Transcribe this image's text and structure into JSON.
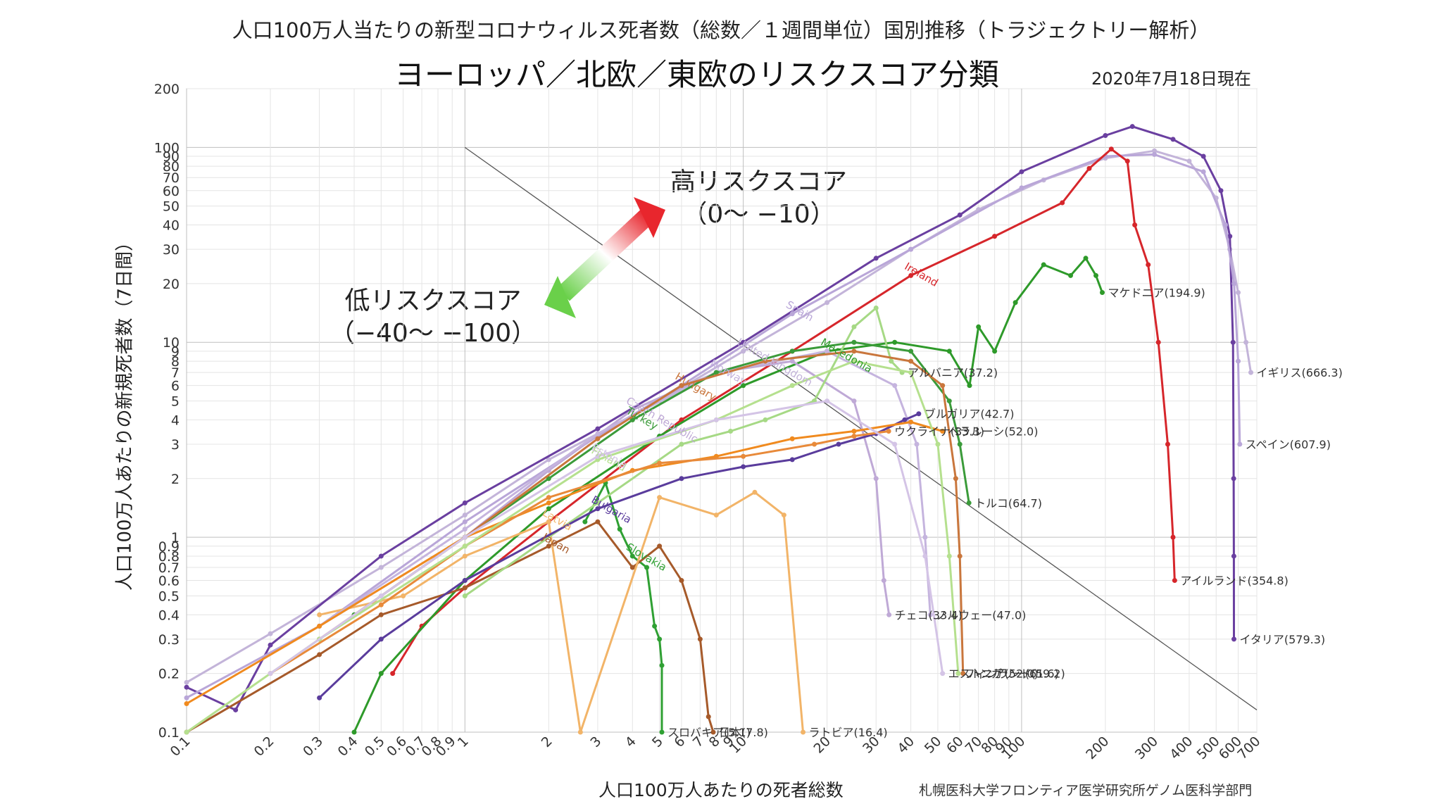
{
  "header": {
    "title": "人口100万人当たりの新型コロナウィルス死者数（総数／１週間単位）国別推移（トラジェクトリー解析）",
    "subtitle": "ヨーロッパ／北欧／東欧のリスクスコア分類",
    "date": "2020年7月18日現在"
  },
  "footer": {
    "credit": "札幌医科大学フロンティア医学研究所ゲノム医科学部門"
  },
  "zones": {
    "high": {
      "line1": "高リスクスコア",
      "line2": "（0〜 −10）",
      "color": "#e8262d"
    },
    "low": {
      "line1": "低リスクスコア",
      "line2": "（−40〜 −100）",
      "color": "#6ad04a"
    }
  },
  "chart_data": {
    "type": "line",
    "x_scale": "log",
    "y_scale": "log",
    "xlabel": "人口100万人あたりの死者総数",
    "ylabel": "人口100万人あたりの新規死者数（7日間）",
    "xlim": [
      0.1,
      700
    ],
    "ylim": [
      0.1,
      200
    ],
    "x_ticks": [
      "0.1",
      "0.2",
      "0.3",
      "0.4",
      "0.5",
      "0.6",
      "0.7",
      "0.8",
      "0.9",
      "1",
      "2",
      "3",
      "4",
      "5",
      "6",
      "7",
      "8",
      "9",
      "10",
      "20",
      "30",
      "40",
      "50",
      "60",
      "70",
      "80",
      "90",
      "100",
      "200",
      "300",
      "400",
      "500",
      "600",
      "700"
    ],
    "y_ticks": [
      "0.1",
      "0.2",
      "0.3",
      "0.4",
      "0.5",
      "0.6",
      "0.7",
      "0.8",
      "0.9",
      "1",
      "2",
      "3",
      "4",
      "5",
      "6",
      "7",
      "8",
      "9",
      "10",
      "20",
      "30",
      "40",
      "50",
      "60",
      "70",
      "80",
      "90",
      "100",
      "200"
    ],
    "grid": true,
    "reference_line": [
      [
        1,
        100
      ],
      [
        700,
        0.13
      ]
    ],
    "series": [
      {
        "key": "uk",
        "color": "#c3b4d9",
        "inline_label": "United Kingdom",
        "end_label": "イギリス(666.3)",
        "points": [
          [
            0.1,
            0.18
          ],
          [
            0.2,
            0.32
          ],
          [
            0.5,
            0.7
          ],
          [
            1,
            1.3
          ],
          [
            2,
            2.5
          ],
          [
            5,
            5
          ],
          [
            10,
            9
          ],
          [
            20,
            16
          ],
          [
            40,
            30
          ],
          [
            70,
            48
          ],
          [
            120,
            68
          ],
          [
            200,
            88
          ],
          [
            300,
            96
          ],
          [
            400,
            85
          ],
          [
            500,
            55
          ],
          [
            560,
            30
          ],
          [
            600,
            18
          ],
          [
            640,
            10
          ],
          [
            666.3,
            7
          ]
        ]
      },
      {
        "key": "italy",
        "color": "#6a3fa0",
        "inline_label": "",
        "end_label": "イタリア(579.3)",
        "points": [
          [
            0.1,
            0.17
          ],
          [
            0.15,
            0.13
          ],
          [
            0.2,
            0.28
          ],
          [
            0.5,
            0.8
          ],
          [
            1,
            1.5
          ],
          [
            3,
            3.6
          ],
          [
            10,
            10
          ],
          [
            30,
            27
          ],
          [
            60,
            45
          ],
          [
            100,
            75
          ],
          [
            200,
            115
          ],
          [
            250,
            128
          ],
          [
            350,
            110
          ],
          [
            450,
            90
          ],
          [
            520,
            60
          ],
          [
            560,
            35
          ],
          [
            575,
            10
          ],
          [
            578,
            2
          ],
          [
            579,
            0.8
          ],
          [
            579.3,
            0.3
          ]
        ]
      },
      {
        "key": "spain",
        "color": "#b9a6d8",
        "inline_label": "Spain",
        "end_label": "スペイン(607.9)",
        "points": [
          [
            0.1,
            0.15
          ],
          [
            0.3,
            0.35
          ],
          [
            1,
            1.2
          ],
          [
            3,
            3.3
          ],
          [
            6,
            6
          ],
          [
            15,
            14
          ],
          [
            40,
            30
          ],
          [
            100,
            62
          ],
          [
            200,
            90
          ],
          [
            300,
            92
          ],
          [
            450,
            75
          ],
          [
            540,
            40
          ],
          [
            580,
            20
          ],
          [
            600,
            8
          ],
          [
            607.9,
            3
          ]
        ]
      },
      {
        "key": "ireland",
        "color": "#d6262b",
        "inline_label": "Ireland",
        "end_label": "アイルランド(354.8)",
        "points": [
          [
            0.55,
            0.2
          ],
          [
            0.7,
            0.35
          ],
          [
            1,
            0.55
          ],
          [
            2,
            1.2
          ],
          [
            6,
            4
          ],
          [
            15,
            9
          ],
          [
            40,
            22
          ],
          [
            80,
            35
          ],
          [
            140,
            52
          ],
          [
            175,
            78
          ],
          [
            210,
            98
          ],
          [
            240,
            85
          ],
          [
            255,
            40
          ],
          [
            285,
            25
          ],
          [
            310,
            10
          ],
          [
            335,
            3
          ],
          [
            350,
            1
          ],
          [
            354.8,
            0.6
          ]
        ]
      },
      {
        "key": "macedonia",
        "color": "#2e9a2a",
        "inline_label": "Macedonia",
        "end_label": "マケドニア(194.9)",
        "points": [
          [
            0.4,
            0.1
          ],
          [
            0.5,
            0.2
          ],
          [
            1,
            0.6
          ],
          [
            2,
            1.4
          ],
          [
            5,
            3.3
          ],
          [
            10,
            6
          ],
          [
            20,
            9
          ],
          [
            35,
            10
          ],
          [
            55,
            9
          ],
          [
            65,
            6
          ],
          [
            70,
            12
          ],
          [
            80,
            9
          ],
          [
            95,
            16
          ],
          [
            120,
            25
          ],
          [
            150,
            22
          ],
          [
            170,
            27
          ],
          [
            185,
            22
          ],
          [
            194.9,
            18
          ]
        ]
      },
      {
        "key": "slovakia",
        "color": "#2fa033",
        "inline_label": "Slovakia",
        "end_label": "スロバキア(5.1)",
        "points": [
          [
            2.7,
            1.2
          ],
          [
            3.2,
            1.9
          ],
          [
            3.6,
            1.1
          ],
          [
            4,
            0.8
          ],
          [
            4.5,
            0.7
          ],
          [
            4.8,
            0.35
          ],
          [
            5,
            0.3
          ],
          [
            5.1,
            0.22
          ],
          [
            5.1,
            0.1
          ]
        ]
      },
      {
        "key": "japan",
        "color": "#a65a2a",
        "inline_label": "Japan",
        "end_label": "日本(7.8)",
        "points": [
          [
            0.1,
            0.1
          ],
          [
            0.3,
            0.25
          ],
          [
            0.5,
            0.4
          ],
          [
            1,
            0.55
          ],
          [
            2,
            0.9
          ],
          [
            3,
            1.2
          ],
          [
            4,
            0.7
          ],
          [
            5,
            0.9
          ],
          [
            6,
            0.6
          ],
          [
            7,
            0.3
          ],
          [
            7.5,
            0.12
          ],
          [
            7.8,
            0.1
          ]
        ]
      },
      {
        "key": "latvia",
        "color": "#f2b468",
        "inline_label": "Latvia",
        "end_label": "ラトビア(16.4)",
        "points": [
          [
            0.3,
            0.4
          ],
          [
            0.6,
            0.5
          ],
          [
            1,
            0.8
          ],
          [
            2,
            1.2
          ],
          [
            2.6,
            0.1
          ],
          [
            5,
            1.6
          ],
          [
            8,
            1.3
          ],
          [
            11,
            1.7
          ],
          [
            14,
            1.3
          ],
          [
            16.4,
            0.1
          ]
        ]
      },
      {
        "key": "czech",
        "color": "#bfa9d6",
        "inline_label": "Czech Republic",
        "end_label": "チェコ(33.4)",
        "points": [
          [
            0.3,
            0.35
          ],
          [
            1,
            1
          ],
          [
            2,
            2.2
          ],
          [
            4,
            4.5
          ],
          [
            8,
            7
          ],
          [
            15,
            8
          ],
          [
            25,
            5
          ],
          [
            30,
            2
          ],
          [
            32,
            0.6
          ],
          [
            33.4,
            0.4
          ]
        ]
      },
      {
        "key": "norway",
        "color": "#c5b4de",
        "inline_label": "Norway",
        "end_label": "ノルウェー(47.0)",
        "points": [
          [
            0.3,
            0.35
          ],
          [
            1,
            1.1
          ],
          [
            3,
            3.4
          ],
          [
            8,
            7
          ],
          [
            20,
            9
          ],
          [
            35,
            6
          ],
          [
            42,
            3
          ],
          [
            45,
            1
          ],
          [
            47,
            0.4
          ]
        ]
      },
      {
        "key": "albania",
        "color": "#a6d985",
        "inline_label": "",
        "end_label": "アルバニア(37.2)",
        "points": [
          [
            1,
            0.5
          ],
          [
            3,
            1.5
          ],
          [
            6,
            3
          ],
          [
            9,
            3.5
          ],
          [
            12,
            4
          ],
          [
            18,
            5
          ],
          [
            25,
            12
          ],
          [
            30,
            15
          ],
          [
            34,
            8
          ],
          [
            37.2,
            7
          ]
        ]
      },
      {
        "key": "bulgaria",
        "color": "#5a3c9c",
        "inline_label": "Bulgaria",
        "end_label": "ブルガリア(42.7)",
        "points": [
          [
            0.3,
            0.15
          ],
          [
            0.5,
            0.3
          ],
          [
            1,
            0.6
          ],
          [
            3,
            1.4
          ],
          [
            6,
            2
          ],
          [
            10,
            2.3
          ],
          [
            15,
            2.5
          ],
          [
            22,
            3
          ],
          [
            30,
            3.4
          ],
          [
            38,
            4
          ],
          [
            42.7,
            4.3
          ]
        ]
      },
      {
        "key": "belarus",
        "color": "#f08a1e",
        "inline_label": "",
        "end_label": "ベラルーシ(52.0)",
        "points": [
          [
            0.1,
            0.14
          ],
          [
            0.3,
            0.35
          ],
          [
            1,
            1
          ],
          [
            2,
            1.5
          ],
          [
            4,
            2.2
          ],
          [
            8,
            2.6
          ],
          [
            15,
            3.2
          ],
          [
            25,
            3.5
          ],
          [
            40,
            3.9
          ],
          [
            52,
            3.5
          ]
        ]
      },
      {
        "key": "ukraine",
        "color": "#e88a3a",
        "inline_label": "",
        "end_label": "ウクライナ(33.3)",
        "points": [
          [
            0.2,
            0.2
          ],
          [
            0.5,
            0.45
          ],
          [
            1,
            0.9
          ],
          [
            2,
            1.6
          ],
          [
            5,
            2.4
          ],
          [
            10,
            2.6
          ],
          [
            18,
            3
          ],
          [
            25,
            3.3
          ],
          [
            33.3,
            3.5
          ]
        ]
      },
      {
        "key": "turkey",
        "color": "#3b9b3a",
        "inline_label": "Turkey",
        "end_label": "トルコ(64.7)",
        "points": [
          [
            0.4,
            0.4
          ],
          [
            1,
            1
          ],
          [
            2,
            2
          ],
          [
            4,
            4
          ],
          [
            8,
            7
          ],
          [
            15,
            9
          ],
          [
            25,
            10
          ],
          [
            40,
            9
          ],
          [
            55,
            5
          ],
          [
            60,
            3
          ],
          [
            64.7,
            1.5
          ]
        ]
      },
      {
        "key": "hungary",
        "color": "#c9763c",
        "inline_label": "Hungary",
        "end_label": "ハンガリー(61.6)",
        "points": [
          [
            0.3,
            0.3
          ],
          [
            1,
            1
          ],
          [
            3,
            3.2
          ],
          [
            6,
            6
          ],
          [
            12,
            8
          ],
          [
            25,
            9
          ],
          [
            40,
            8
          ],
          [
            52,
            6
          ],
          [
            58,
            2
          ],
          [
            60,
            0.8
          ],
          [
            61.6,
            0.2
          ]
        ]
      },
      {
        "key": "finland",
        "color": "#b5e08e",
        "inline_label": "Finland",
        "end_label": "フィンランド(59.2)",
        "points": [
          [
            0.1,
            0.1
          ],
          [
            0.3,
            0.3
          ],
          [
            1,
            0.9
          ],
          [
            3,
            2.5
          ],
          [
            8,
            4
          ],
          [
            15,
            6
          ],
          [
            25,
            8
          ],
          [
            40,
            7
          ],
          [
            50,
            3
          ],
          [
            55,
            0.8
          ],
          [
            59.2,
            0.2
          ]
        ]
      },
      {
        "key": "estonia",
        "color": "#d4c4e6",
        "inline_label": "Estonia",
        "end_label": "エストニア(52.0)",
        "points": [
          [
            0.2,
            0.2
          ],
          [
            0.5,
            0.5
          ],
          [
            1,
            1
          ],
          [
            3,
            2.6
          ],
          [
            8,
            4
          ],
          [
            20,
            5
          ],
          [
            35,
            3
          ],
          [
            45,
            0.8
          ],
          [
            52,
            0.2
          ]
        ]
      }
    ]
  }
}
